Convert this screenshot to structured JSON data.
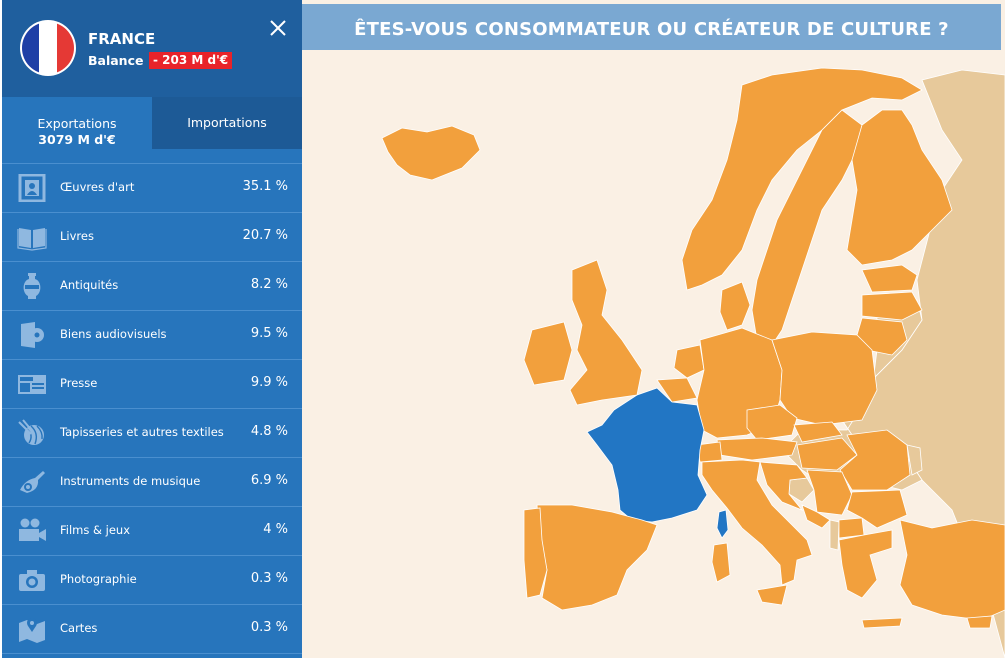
{
  "country": {
    "name": "FRANCE",
    "balance_label": "Balance :",
    "balance_value": "- 203 M d'€",
    "flag_colors": [
      "#1e3fa6",
      "#ffffff",
      "#e53935"
    ]
  },
  "tabs": {
    "exports_label": "Exportations",
    "exports_total": "3079 M d'€",
    "imports_label": "Importations"
  },
  "categories": [
    {
      "icon": "painting-frame-icon",
      "label": "Œuvres d'art",
      "value": "35.1 %"
    },
    {
      "icon": "book-icon",
      "label": "Livres",
      "value": "20.7 %"
    },
    {
      "icon": "vase-icon",
      "label": "Antiquités",
      "value": "8.2 %"
    },
    {
      "icon": "audiovisual-icon",
      "label": "Biens audiovisuels",
      "value": "9.5 %"
    },
    {
      "icon": "newspaper-icon",
      "label": "Presse",
      "value": "9.9 %"
    },
    {
      "icon": "yarn-icon",
      "label": "Tapisseries et autres textiles",
      "value": "4.8 %"
    },
    {
      "icon": "instrument-icon",
      "label": "Instruments de musique",
      "value": "6.9 %"
    },
    {
      "icon": "camera-video-icon",
      "label": "Films & jeux",
      "value": "4 %"
    },
    {
      "icon": "camera-photo-icon",
      "label": "Photographie",
      "value": "0.3 %"
    },
    {
      "icon": "map-pin-icon",
      "label": "Cartes",
      "value": "0.3 %"
    }
  ],
  "map": {
    "title": "ÊTES-VOUS CONSOMMATEUR OU CRÉATEUR DE CULTURE ?",
    "colors": {
      "selected": "#2276c4",
      "member": "#f2a03d",
      "other": "#e7c99b",
      "background": "#faf0e4",
      "title_bar": "#7aa8d2"
    }
  },
  "sidebar_colors": {
    "panel": "#2775bc",
    "header": "#1f5f9e",
    "inactive_tab": "#1d5a96",
    "balance_badge": "#e8232a"
  }
}
